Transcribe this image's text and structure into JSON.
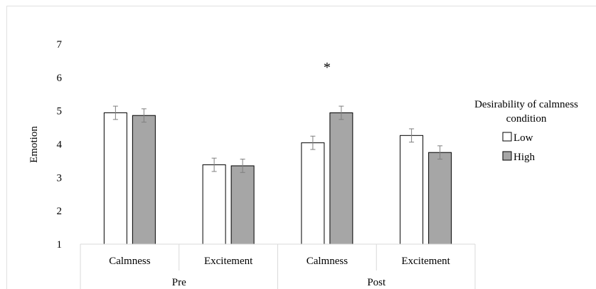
{
  "chart_data": {
    "type": "bar",
    "ylabel": "Emotion",
    "ylim": [
      1,
      7
    ],
    "yticks": [
      1,
      2,
      3,
      4,
      5,
      6,
      7
    ],
    "grid": false,
    "legend_placement": "right",
    "legend_title": "Desirability of calmness condition",
    "legend_title_lines": [
      "Desirability of calmness",
      "condition"
    ],
    "categories": [
      "Calmness",
      "Excitement",
      "Calmness",
      "Excitement"
    ],
    "groups": [
      {
        "label": "Pre",
        "categories": [
          "Calmness",
          "Excitement"
        ]
      },
      {
        "label": "Post",
        "categories": [
          "Calmness",
          "Excitement"
        ]
      }
    ],
    "series": [
      {
        "name": "Low",
        "color": "#ffffff",
        "values": [
          4.94,
          3.38,
          4.04,
          4.26
        ],
        "error": [
          0.2,
          0.2,
          0.2,
          0.2
        ]
      },
      {
        "name": "High",
        "color": "#a6a6a6",
        "values": [
          4.86,
          3.35,
          4.94,
          3.75
        ],
        "error": [
          0.2,
          0.2,
          0.2,
          0.2
        ]
      }
    ],
    "annotations": [
      {
        "text": "*",
        "category_index": 2
      }
    ]
  }
}
